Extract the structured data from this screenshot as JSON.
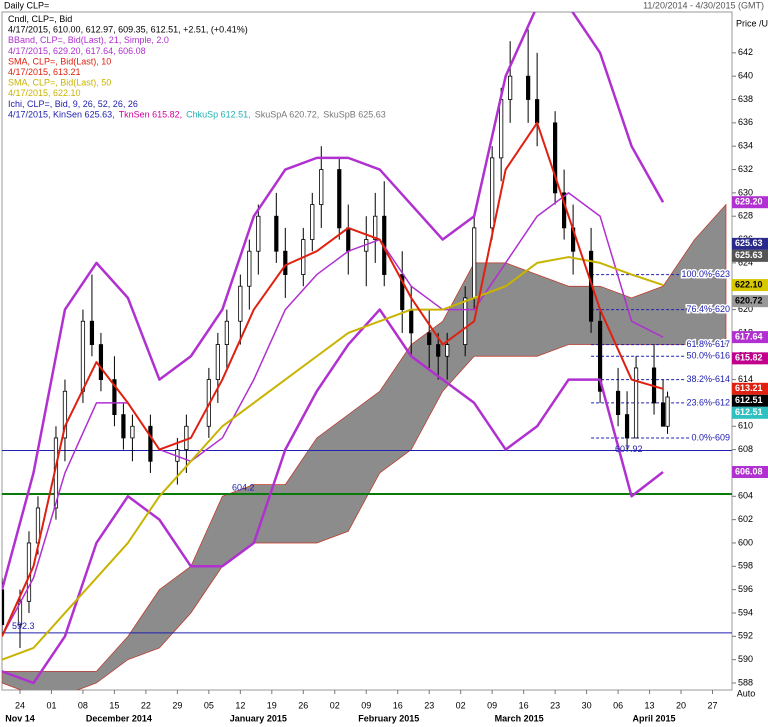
{
  "chart_data": {
    "type": "candlestick",
    "title": "Daily CLP=",
    "subtitle": "11/20/2014 - 4/30/2015 (GMT)",
    "y_label": "Price /USD",
    "xlim": [
      "2014-11-20",
      "2015-04-30"
    ],
    "ylim": [
      587.4,
      645.5
    ],
    "yticks": [
      588,
      590,
      592,
      594,
      596,
      598,
      600,
      602,
      604,
      606,
      608,
      610,
      612,
      614,
      616,
      618,
      620,
      622,
      624,
      626,
      628,
      630,
      632,
      634,
      636,
      638,
      640,
      642
    ],
    "xticks": [
      {
        "value": "2014-11-24",
        "label": "24"
      },
      {
        "value": "2014-12-01",
        "label": "01"
      },
      {
        "value": "2014-12-08",
        "label": "08"
      },
      {
        "value": "2014-12-15",
        "label": "15"
      },
      {
        "value": "2014-12-22",
        "label": "22"
      },
      {
        "value": "2014-12-29",
        "label": "29"
      },
      {
        "value": "2015-01-05",
        "label": "05"
      },
      {
        "value": "2015-01-12",
        "label": "12"
      },
      {
        "value": "2015-01-19",
        "label": "19"
      },
      {
        "value": "2015-01-26",
        "label": "26"
      },
      {
        "value": "2015-02-02",
        "label": "02"
      },
      {
        "value": "2015-02-09",
        "label": "09"
      },
      {
        "value": "2015-02-16",
        "label": "16"
      },
      {
        "value": "2015-02-23",
        "label": "23"
      },
      {
        "value": "2015-03-02",
        "label": "02"
      },
      {
        "value": "2015-03-09",
        "label": "09"
      },
      {
        "value": "2015-03-16",
        "label": "16"
      },
      {
        "value": "2015-03-23",
        "label": "23"
      },
      {
        "value": "2015-03-30",
        "label": "30"
      },
      {
        "value": "2015-04-06",
        "label": "06"
      },
      {
        "value": "2015-04-13",
        "label": "13"
      },
      {
        "value": "2015-04-20",
        "label": "20"
      },
      {
        "value": "2015-04-27",
        "label": "27"
      }
    ],
    "months": [
      {
        "value": "2014-11-24",
        "label": "Nov 14"
      },
      {
        "value": "2014-12-16",
        "label": "December 2014"
      },
      {
        "value": "2015-01-16",
        "label": "January 2015"
      },
      {
        "value": "2015-02-14",
        "label": "February 2015"
      },
      {
        "value": "2015-03-15",
        "label": "March 2015"
      },
      {
        "value": "2015-04-14",
        "label": "April 2015"
      }
    ],
    "legend": [
      [
        {
          "text": "Cndl, CLP=, Bid",
          "color": "#000000"
        }
      ],
      [
        {
          "text": "4/17/2015, 610.00, 612.97, 609.35, 612.51, +2.51, (+0.41%)",
          "color": "#000000"
        }
      ],
      [
        {
          "text": "BBand, CLP=, Bid(Last), 21, Simple, 2.0",
          "color": "#b030d0"
        }
      ],
      [
        {
          "text": "4/17/2015, 629.20, 617.64, 606.08",
          "color": "#b030d0"
        }
      ],
      [
        {
          "text": "SMA, CLP=, Bid(Last), 10",
          "color": "#e02010"
        }
      ],
      [
        {
          "text": "4/17/2015, 613.21",
          "color": "#e02010"
        }
      ],
      [
        {
          "text": "SMA, CLP=, Bid(Last), 50",
          "color": "#c8b400"
        }
      ],
      [
        {
          "text": "4/17/2015, 622.10",
          "color": "#c8b400"
        }
      ],
      [
        {
          "text": "Ichi, CLP=, Bid, 9, 26, 52, 26, 26",
          "color": "#2020b0"
        }
      ],
      [
        {
          "text": "4/17/2015, KinSen 625.63,",
          "color": "#2020b0"
        },
        {
          "text": "TknSen 615.82,",
          "color": "#d000a0"
        },
        {
          "text": "ChkuSp 612.51,",
          "color": "#20b0b0"
        },
        {
          "text": "SkuSpA 620.72,",
          "color": "#777777"
        },
        {
          "text": "SkuSpB 625.63",
          "color": "#777777"
        }
      ]
    ],
    "candles": {
      "x": [
        "2014-11-20",
        "2014-11-24",
        "2014-11-26",
        "2014-11-28",
        "2014-12-02",
        "2014-12-04",
        "2014-12-08",
        "2014-12-10",
        "2014-12-12",
        "2014-12-15",
        "2014-12-17",
        "2014-12-19",
        "2014-12-23",
        "2014-12-29",
        "2014-12-31",
        "2015-01-05",
        "2015-01-07",
        "2015-01-09",
        "2015-01-12",
        "2015-01-14",
        "2015-01-16",
        "2015-01-20",
        "2015-01-22",
        "2015-01-26",
        "2015-01-28",
        "2015-01-30",
        "2015-02-03",
        "2015-02-05",
        "2015-02-09",
        "2015-02-11",
        "2015-02-13",
        "2015-02-17",
        "2015-02-19",
        "2015-02-23",
        "2015-02-25",
        "2015-02-27",
        "2015-03-03",
        "2015-03-05",
        "2015-03-09",
        "2015-03-11",
        "2015-03-13",
        "2015-03-17",
        "2015-03-19",
        "2015-03-23",
        "2015-03-25",
        "2015-03-27",
        "2015-03-31",
        "2015-04-02",
        "2015-04-06",
        "2015-04-08",
        "2015-04-10",
        "2015-04-14",
        "2015-04-16",
        "2015-04-17"
      ],
      "open": [
        596,
        593,
        595,
        600,
        603,
        609,
        613,
        619,
        617,
        614,
        611,
        609,
        610,
        607,
        608,
        610,
        614,
        617,
        619,
        622,
        625,
        628,
        625,
        623,
        626,
        629,
        632,
        627,
        625,
        626,
        628,
        623,
        620,
        618,
        617,
        616,
        617,
        621,
        627,
        633,
        638,
        640,
        638,
        636,
        630,
        627,
        625,
        619,
        613,
        611,
        609,
        615,
        612,
        610
      ],
      "high": [
        597,
        596,
        601,
        604,
        610,
        614,
        620,
        623,
        618,
        616,
        612,
        611,
        611,
        609,
        611,
        615,
        618,
        620,
        623,
        626,
        629,
        630,
        627,
        627,
        630,
        634,
        633,
        629,
        628,
        630,
        631,
        625,
        622,
        620,
        618,
        618,
        622,
        628,
        634,
        639,
        643,
        644,
        642,
        637,
        632,
        629,
        627,
        620,
        615,
        613,
        616,
        617,
        614,
        612.97
      ],
      "low": [
        592,
        591,
        594,
        599,
        602,
        607,
        612,
        616,
        613,
        610,
        608,
        607,
        606,
        605,
        606,
        609,
        612,
        615,
        617,
        620,
        623,
        624,
        621,
        622,
        625,
        627,
        626,
        623,
        622,
        624,
        622,
        618,
        616,
        615,
        614,
        614,
        616,
        620,
        626,
        631,
        636,
        636,
        634,
        629,
        626,
        623,
        618,
        612,
        610,
        608,
        609,
        611,
        610,
        609.35
      ],
      "close": [
        593,
        595,
        600,
        603,
        609,
        613,
        619,
        617,
        614,
        611,
        609,
        610,
        607,
        608,
        610,
        614,
        617,
        619,
        622,
        625,
        628,
        625,
        623,
        626,
        629,
        632,
        627,
        625,
        626,
        628,
        623,
        620,
        618,
        617,
        616,
        617,
        621,
        627,
        633,
        638,
        640,
        638,
        636,
        630,
        627,
        625,
        619,
        613,
        611,
        609,
        615,
        612,
        610,
        612.51
      ]
    },
    "overlay_x": [
      "2014-11-20",
      "2014-11-27",
      "2014-12-04",
      "2014-12-11",
      "2014-12-18",
      "2014-12-25",
      "2015-01-01",
      "2015-01-08",
      "2015-01-15",
      "2015-01-22",
      "2015-01-29",
      "2015-02-05",
      "2015-02-12",
      "2015-02-19",
      "2015-02-26",
      "2015-03-05",
      "2015-03-12",
      "2015-03-19",
      "2015-03-26",
      "2015-04-02",
      "2015-04-09",
      "2015-04-16",
      "2015-04-23",
      "2015-04-30"
    ],
    "cloud": {
      "color": "#8c8c8c",
      "span_a": [
        589,
        589,
        589,
        589,
        592,
        596,
        598,
        604,
        605,
        605,
        609,
        611,
        613,
        617,
        619,
        624,
        624,
        623,
        622,
        622,
        621,
        622,
        626,
        629
      ],
      "span_b": [
        588,
        587,
        587,
        588,
        590,
        591,
        594,
        598,
        600,
        600,
        600,
        601,
        606,
        608,
        613,
        616,
        616,
        616,
        617,
        617,
        617,
        617,
        617,
        617
      ]
    },
    "lines": [
      {
        "color": "#b030d0",
        "width": 2.5,
        "values": [
          596,
          606,
          620,
          624,
          621,
          614,
          616,
          620,
          628,
          632,
          633,
          633,
          632,
          629,
          626,
          628,
          640,
          646,
          646,
          642,
          634,
          629.2,
          null,
          null
        ]
      },
      {
        "color": "#b030d0",
        "width": 1.5,
        "values": [
          592,
          597,
          606,
          612,
          612,
          608,
          607,
          609,
          614,
          620,
          623,
          625,
          626,
          622,
          620,
          620,
          624,
          628,
          630,
          628,
          619,
          617.64,
          null,
          null
        ]
      },
      {
        "color": "#b030d0",
        "width": 2.5,
        "values": [
          589,
          588,
          592,
          600,
          604,
          602,
          598,
          598,
          600,
          608,
          613,
          617,
          620,
          616,
          614,
          612,
          608,
          610,
          614,
          614,
          604,
          606.08,
          null,
          null
        ]
      },
      {
        "color": "#c8b400",
        "width": 2,
        "values": [
          590,
          591,
          594,
          597,
          600,
          604,
          607,
          610,
          612,
          614,
          616,
          618,
          619,
          620,
          620,
          621,
          622,
          624,
          624.5,
          624,
          623,
          622.1,
          null,
          null
        ]
      },
      {
        "color": "#e02010",
        "width": 2,
        "values": [
          592,
          598,
          610,
          615.5,
          612,
          608,
          609,
          614,
          620,
          623.8,
          625,
          627,
          626,
          621,
          617,
          619,
          632,
          636,
          628,
          620,
          614,
          613.21,
          null,
          null
        ]
      }
    ],
    "hlines": [
      {
        "value": 607.92,
        "label": "607.92",
        "color": "#2020b0"
      },
      {
        "value": 604.2,
        "label": "604.2",
        "color": "#0a7a0a"
      },
      {
        "value": 592.3,
        "label": "592.3",
        "color": "#2020b0"
      }
    ],
    "fib": [
      {
        "value": 623,
        "label": "100.0%-623"
      },
      {
        "value": 620,
        "label": "76.4%-620"
      },
      {
        "value": 617,
        "label": "61.8%-617"
      },
      {
        "value": 616,
        "label": "50.0%-616"
      },
      {
        "value": 614,
        "label": "38.2%-614"
      },
      {
        "value": 612,
        "label": "23.6%-612"
      },
      {
        "value": 609,
        "label": "0.0%-609"
      }
    ],
    "fib_start": "2015-03-31",
    "tags": [
      {
        "value": 629.2,
        "label": "629.20",
        "color": "#b030d0"
      },
      {
        "value": 625.63,
        "label": "625.63",
        "color": "#2a2a8a"
      },
      {
        "value": 625.63,
        "label": "625.63",
        "color": "#555555"
      },
      {
        "value": 622.1,
        "label": "622.10",
        "color": "#d8c800"
      },
      {
        "value": 620.72,
        "label": "620.72",
        "color": "#999999"
      },
      {
        "value": 617.64,
        "label": "617.64",
        "color": "#b030d0"
      },
      {
        "value": 615.82,
        "label": "615.82",
        "color": "#c0008c"
      },
      {
        "value": 613.21,
        "label": "613.21",
        "color": "#e02010"
      },
      {
        "value": 612.51,
        "label": "612.51",
        "color": "#000000"
      },
      {
        "value": 612.51,
        "label": "612.51",
        "color": "#30c0c0"
      },
      {
        "value": 606.08,
        "label": "606.08",
        "color": "#b030d0"
      }
    ],
    "auto_label": "Auto"
  }
}
